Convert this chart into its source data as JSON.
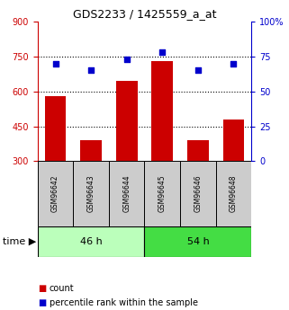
{
  "title": "GDS2233 / 1425559_a_at",
  "samples": [
    "GSM96642",
    "GSM96643",
    "GSM96644",
    "GSM96645",
    "GSM96646",
    "GSM96648"
  ],
  "counts": [
    580,
    390,
    645,
    730,
    390,
    480
  ],
  "percentiles": [
    70,
    65,
    73,
    78,
    65,
    70
  ],
  "groups": [
    {
      "label": "46 h",
      "samples": [
        0,
        1,
        2
      ],
      "color": "#bbffbb"
    },
    {
      "label": "54 h",
      "samples": [
        3,
        4,
        5
      ],
      "color": "#44dd44"
    }
  ],
  "left_ylim": [
    300,
    900
  ],
  "right_ylim": [
    0,
    100
  ],
  "left_yticks": [
    300,
    450,
    600,
    750,
    900
  ],
  "right_yticks": [
    0,
    25,
    50,
    75,
    100
  ],
  "right_yticklabels": [
    "0",
    "25",
    "50",
    "75",
    "100%"
  ],
  "hlines": [
    450,
    600,
    750
  ],
  "bar_color": "#cc0000",
  "scatter_color": "#0000cc",
  "bar_width": 0.6,
  "bg_color": "#ffffff",
  "label_box_color": "#cccccc",
  "legend_count_label": "count",
  "legend_pct_label": "percentile rank within the sample",
  "left_tick_color": "#cc0000",
  "right_tick_color": "#0000cc",
  "title_fontsize": 9,
  "tick_labelsize": 7,
  "sample_fontsize": 5.5,
  "group_fontsize": 8,
  "legend_fontsize": 7,
  "time_fontsize": 8
}
